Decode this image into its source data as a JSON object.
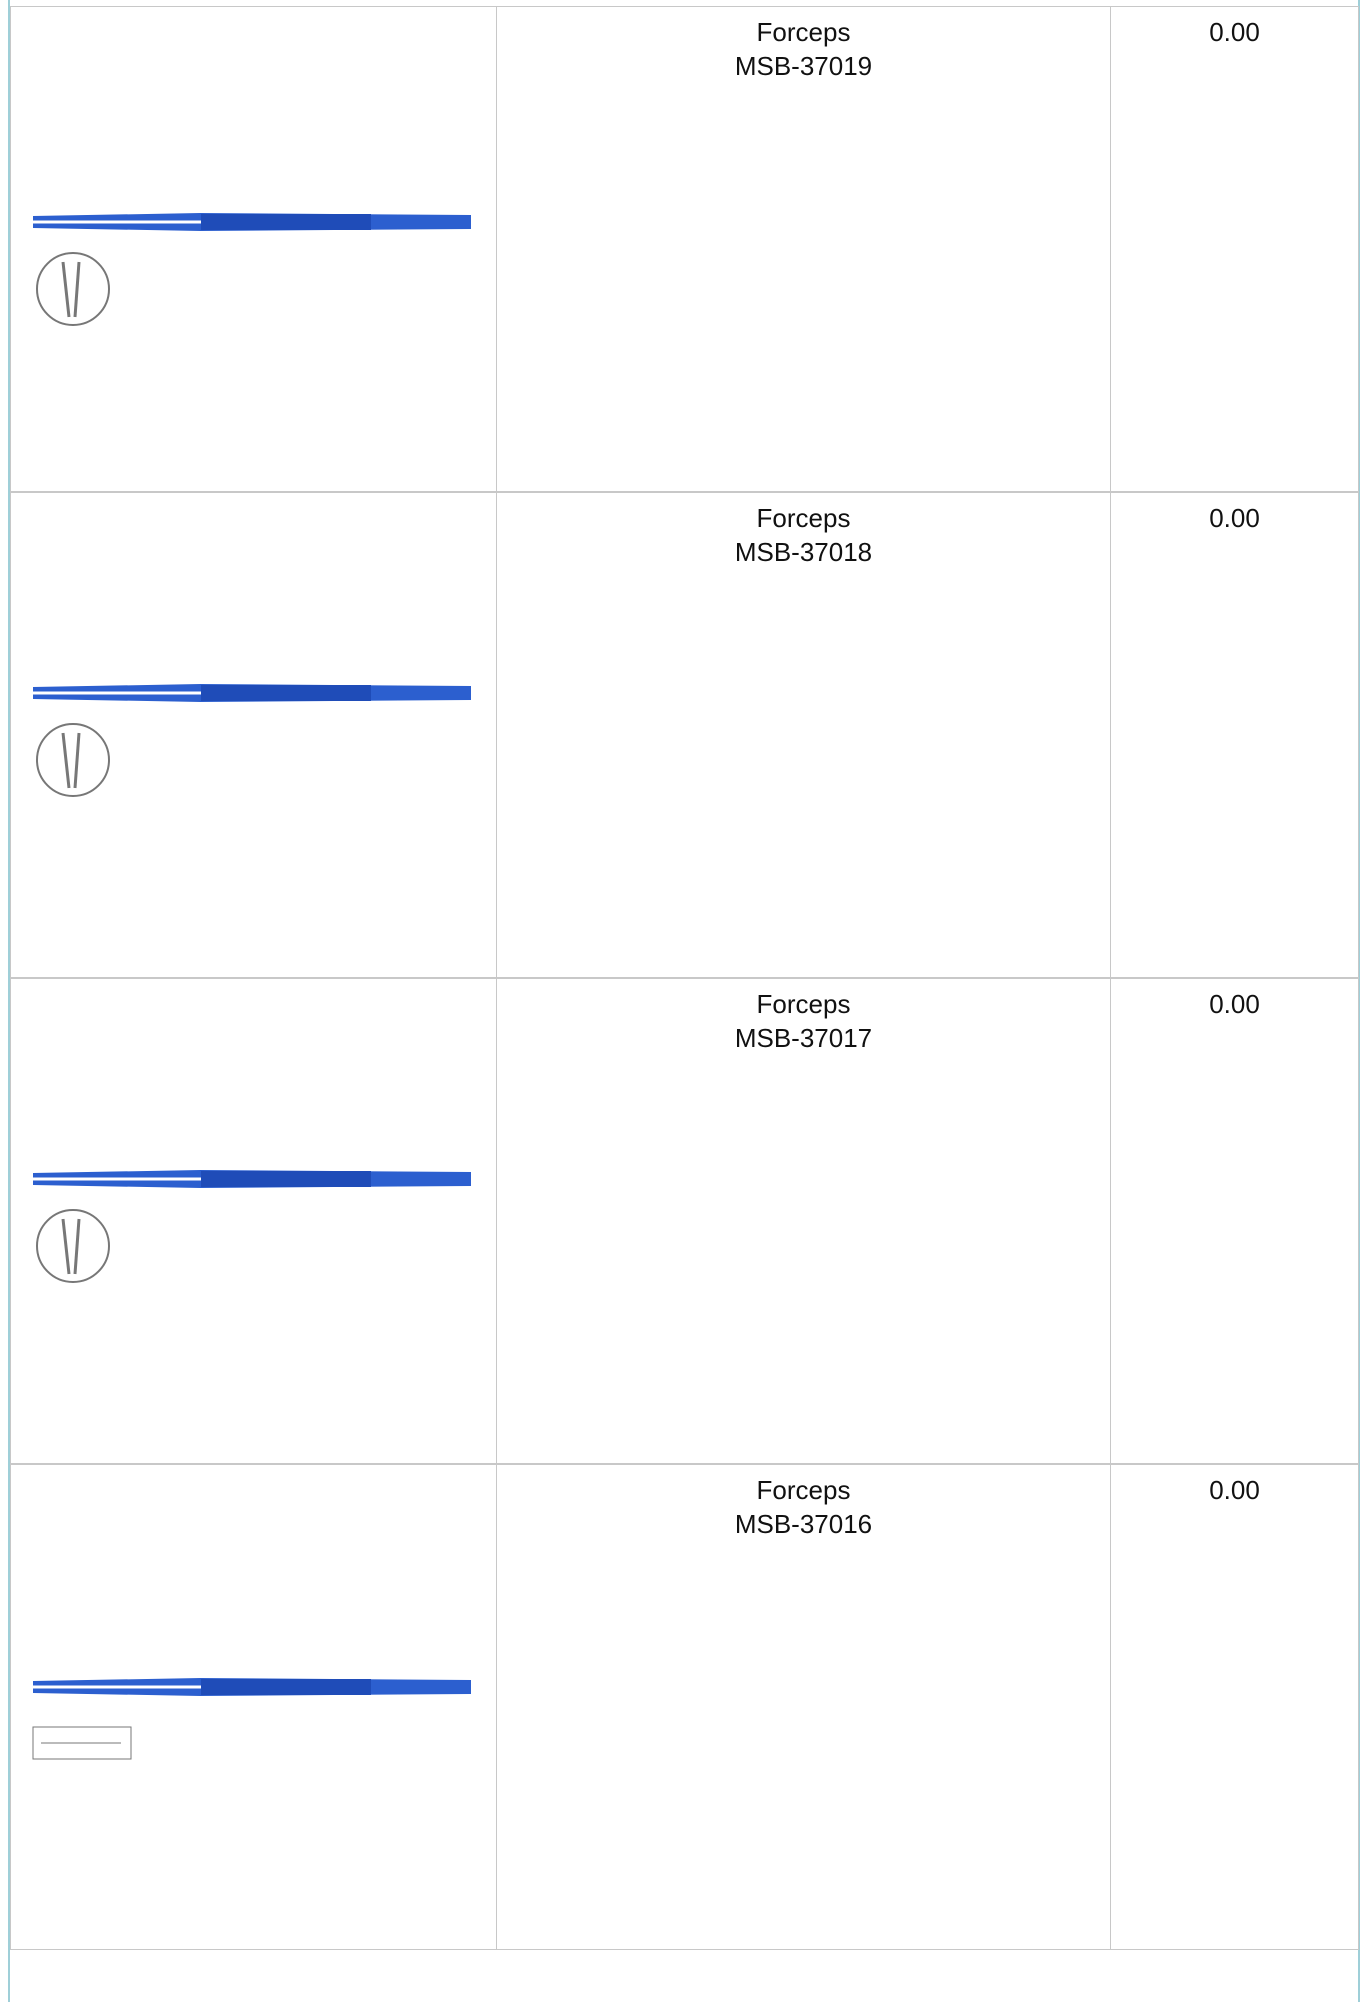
{
  "table": {
    "rows": [
      {
        "name": "Forceps",
        "code": "MSB-37019",
        "price": "0.00"
      },
      {
        "name": "Forceps",
        "code": "MSB-37018",
        "price": "0.00"
      },
      {
        "name": "Forceps",
        "code": "MSB-37017",
        "price": "0.00"
      },
      {
        "name": "Forceps",
        "code": "MSB-37016",
        "price": "0.00"
      }
    ]
  }
}
